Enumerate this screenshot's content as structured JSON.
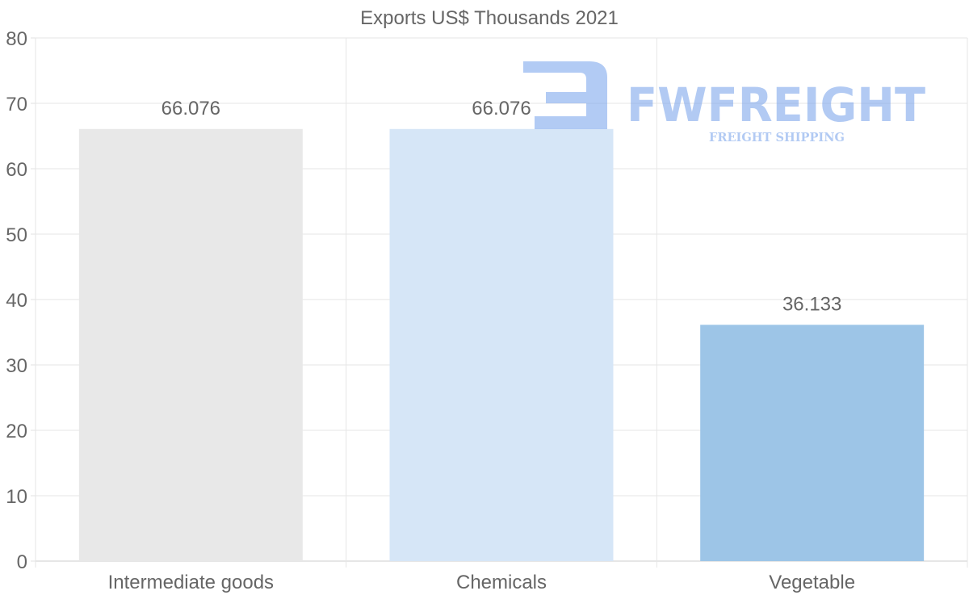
{
  "chart_data": {
    "type": "bar",
    "title": "Exports US$ Thousands 2021",
    "categories": [
      "Intermediate goods",
      "Chemicals",
      "Vegetable"
    ],
    "values": [
      66.076,
      66.076,
      36.133
    ],
    "value_labels": [
      "66.076",
      "66.076",
      "36.133"
    ],
    "bar_colors": [
      "#e8e8e8",
      "#d6e6f7",
      "#9dc5e7"
    ],
    "ylim": [
      0,
      80
    ],
    "yticks": [
      0,
      10,
      20,
      30,
      40,
      50,
      60,
      70,
      80
    ],
    "xlabel": "",
    "ylabel": "",
    "grid": true,
    "legend": "none"
  },
  "watermark": {
    "brand": "FWFREIGHT",
    "tagline": "FREIGHT SHIPPING",
    "color": "#7fa8ec"
  }
}
